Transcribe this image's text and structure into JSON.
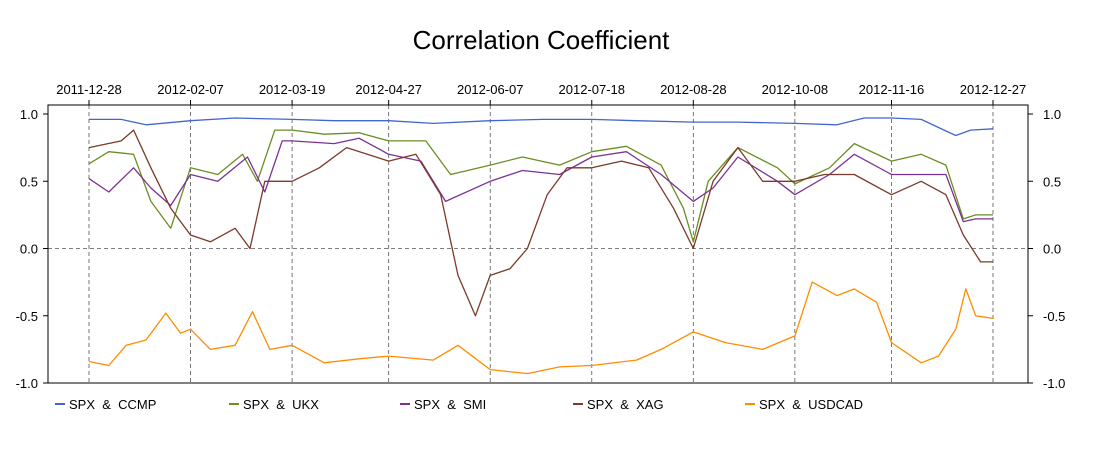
{
  "chart_data": {
    "type": "line",
    "title": "Correlation Coefficient",
    "xlabel": "",
    "ylabel": "",
    "x_range": [
      "2011-12-28",
      "2012-12-27"
    ],
    "ylim": [
      -1.0,
      1.0
    ],
    "x_ticks": [
      "2011-12-28",
      "2012-02-07",
      "2012-03-19",
      "2012-04-27",
      "2012-06-07",
      "2012-07-18",
      "2012-08-28",
      "2012-10-08",
      "2012-11-16",
      "2012-12-27"
    ],
    "y_ticks": [
      {
        "value": 1.0,
        "label": "1.0"
      },
      {
        "value": 0.5,
        "label": "0.5"
      },
      {
        "value": 0.0,
        "label": "0.0"
      },
      {
        "value": -0.5,
        "label": "-0.5"
      },
      {
        "value": -1.0,
        "label": "-1.0"
      }
    ],
    "grid": "dashed vertical lines at date ticks and horizontal line at 0.0",
    "legend_position": "bottom",
    "series": [
      {
        "name": "SPX  &  CCMP",
        "color": "#4466cc",
        "points": [
          [
            "2011-12-28",
            0.96
          ],
          [
            "2012-01-10",
            0.96
          ],
          [
            "2012-01-20",
            0.92
          ],
          [
            "2012-02-07",
            0.95
          ],
          [
            "2012-02-25",
            0.97
          ],
          [
            "2012-03-19",
            0.96
          ],
          [
            "2012-04-05",
            0.95
          ],
          [
            "2012-04-27",
            0.95
          ],
          [
            "2012-05-15",
            0.93
          ],
          [
            "2012-06-07",
            0.95
          ],
          [
            "2012-06-28",
            0.96
          ],
          [
            "2012-07-18",
            0.96
          ],
          [
            "2012-08-05",
            0.95
          ],
          [
            "2012-08-28",
            0.94
          ],
          [
            "2012-09-15",
            0.94
          ],
          [
            "2012-10-08",
            0.93
          ],
          [
            "2012-10-25",
            0.92
          ],
          [
            "2012-11-05",
            0.97
          ],
          [
            "2012-11-16",
            0.97
          ],
          [
            "2012-11-28",
            0.96
          ],
          [
            "2012-12-05",
            0.9
          ],
          [
            "2012-12-12",
            0.84
          ],
          [
            "2012-12-18",
            0.88
          ],
          [
            "2012-12-27",
            0.89
          ]
        ]
      },
      {
        "name": "SPX  &  UKX",
        "color": "#6b8e23",
        "points": [
          [
            "2011-12-28",
            0.63
          ],
          [
            "2012-01-05",
            0.72
          ],
          [
            "2012-01-15",
            0.7
          ],
          [
            "2012-01-22",
            0.35
          ],
          [
            "2012-01-30",
            0.15
          ],
          [
            "2012-02-07",
            0.6
          ],
          [
            "2012-02-18",
            0.55
          ],
          [
            "2012-02-28",
            0.7
          ],
          [
            "2012-03-05",
            0.5
          ],
          [
            "2012-03-12",
            0.88
          ],
          [
            "2012-03-19",
            0.88
          ],
          [
            "2012-04-01",
            0.85
          ],
          [
            "2012-04-15",
            0.86
          ],
          [
            "2012-04-27",
            0.8
          ],
          [
            "2012-05-12",
            0.8
          ],
          [
            "2012-05-22",
            0.55
          ],
          [
            "2012-06-07",
            0.62
          ],
          [
            "2012-06-20",
            0.68
          ],
          [
            "2012-07-05",
            0.62
          ],
          [
            "2012-07-18",
            0.72
          ],
          [
            "2012-08-01",
            0.76
          ],
          [
            "2012-08-15",
            0.62
          ],
          [
            "2012-08-24",
            0.3
          ],
          [
            "2012-08-28",
            0.05
          ],
          [
            "2012-09-03",
            0.5
          ],
          [
            "2012-09-15",
            0.75
          ],
          [
            "2012-10-01",
            0.6
          ],
          [
            "2012-10-08",
            0.48
          ],
          [
            "2012-10-22",
            0.6
          ],
          [
            "2012-11-01",
            0.78
          ],
          [
            "2012-11-16",
            0.65
          ],
          [
            "2012-11-28",
            0.7
          ],
          [
            "2012-12-08",
            0.62
          ],
          [
            "2012-12-15",
            0.22
          ],
          [
            "2012-12-20",
            0.25
          ],
          [
            "2012-12-27",
            0.25
          ]
        ]
      },
      {
        "name": "SPX  &  SMI",
        "color": "#7b3294",
        "points": [
          [
            "2011-12-28",
            0.52
          ],
          [
            "2012-01-05",
            0.42
          ],
          [
            "2012-01-15",
            0.6
          ],
          [
            "2012-01-22",
            0.45
          ],
          [
            "2012-01-30",
            0.32
          ],
          [
            "2012-02-07",
            0.55
          ],
          [
            "2012-02-18",
            0.5
          ],
          [
            "2012-03-01",
            0.68
          ],
          [
            "2012-03-08",
            0.42
          ],
          [
            "2012-03-15",
            0.8
          ],
          [
            "2012-03-19",
            0.8
          ],
          [
            "2012-04-05",
            0.78
          ],
          [
            "2012-04-15",
            0.82
          ],
          [
            "2012-04-27",
            0.7
          ],
          [
            "2012-05-10",
            0.65
          ],
          [
            "2012-05-20",
            0.35
          ],
          [
            "2012-06-07",
            0.5
          ],
          [
            "2012-06-20",
            0.58
          ],
          [
            "2012-07-05",
            0.55
          ],
          [
            "2012-07-18",
            0.68
          ],
          [
            "2012-08-01",
            0.72
          ],
          [
            "2012-08-15",
            0.55
          ],
          [
            "2012-08-28",
            0.35
          ],
          [
            "2012-09-05",
            0.45
          ],
          [
            "2012-09-15",
            0.68
          ],
          [
            "2012-10-01",
            0.5
          ],
          [
            "2012-10-08",
            0.4
          ],
          [
            "2012-10-22",
            0.55
          ],
          [
            "2012-11-01",
            0.7
          ],
          [
            "2012-11-16",
            0.55
          ],
          [
            "2012-11-28",
            0.55
          ],
          [
            "2012-12-08",
            0.55
          ],
          [
            "2012-12-15",
            0.2
          ],
          [
            "2012-12-20",
            0.22
          ],
          [
            "2012-12-27",
            0.22
          ]
        ]
      },
      {
        "name": "SPX  &  XAG",
        "color": "#7b3a2a",
        "points": [
          [
            "2011-12-28",
            0.75
          ],
          [
            "2012-01-10",
            0.8
          ],
          [
            "2012-01-15",
            0.88
          ],
          [
            "2012-01-22",
            0.6
          ],
          [
            "2012-01-30",
            0.3
          ],
          [
            "2012-02-07",
            0.1
          ],
          [
            "2012-02-15",
            0.05
          ],
          [
            "2012-02-25",
            0.15
          ],
          [
            "2012-03-02",
            0.0
          ],
          [
            "2012-03-08",
            0.5
          ],
          [
            "2012-03-19",
            0.5
          ],
          [
            "2012-03-30",
            0.6
          ],
          [
            "2012-04-10",
            0.75
          ],
          [
            "2012-04-27",
            0.65
          ],
          [
            "2012-05-08",
            0.7
          ],
          [
            "2012-05-18",
            0.4
          ],
          [
            "2012-05-25",
            -0.2
          ],
          [
            "2012-06-01",
            -0.5
          ],
          [
            "2012-06-07",
            -0.2
          ],
          [
            "2012-06-15",
            -0.15
          ],
          [
            "2012-06-22",
            0.0
          ],
          [
            "2012-06-30",
            0.4
          ],
          [
            "2012-07-08",
            0.6
          ],
          [
            "2012-07-18",
            0.6
          ],
          [
            "2012-07-30",
            0.65
          ],
          [
            "2012-08-10",
            0.6
          ],
          [
            "2012-08-20",
            0.3
          ],
          [
            "2012-08-28",
            0.0
          ],
          [
            "2012-09-05",
            0.5
          ],
          [
            "2012-09-15",
            0.75
          ],
          [
            "2012-09-25",
            0.5
          ],
          [
            "2012-10-08",
            0.5
          ],
          [
            "2012-10-20",
            0.55
          ],
          [
            "2012-11-01",
            0.55
          ],
          [
            "2012-11-16",
            0.4
          ],
          [
            "2012-11-28",
            0.5
          ],
          [
            "2012-12-08",
            0.4
          ],
          [
            "2012-12-15",
            0.1
          ],
          [
            "2012-12-22",
            -0.1
          ],
          [
            "2012-12-27",
            -0.1
          ]
        ]
      },
      {
        "name": "SPX  &  USDCAD",
        "color": "#ff8c00",
        "points": [
          [
            "2011-12-28",
            -0.84
          ],
          [
            "2012-01-05",
            -0.87
          ],
          [
            "2012-01-12",
            -0.72
          ],
          [
            "2012-01-20",
            -0.68
          ],
          [
            "2012-01-28",
            -0.48
          ],
          [
            "2012-02-03",
            -0.63
          ],
          [
            "2012-02-07",
            -0.6
          ],
          [
            "2012-02-15",
            -0.75
          ],
          [
            "2012-02-25",
            -0.72
          ],
          [
            "2012-03-03",
            -0.47
          ],
          [
            "2012-03-10",
            -0.75
          ],
          [
            "2012-03-19",
            -0.72
          ],
          [
            "2012-04-01",
            -0.85
          ],
          [
            "2012-04-15",
            -0.82
          ],
          [
            "2012-04-27",
            -0.8
          ],
          [
            "2012-05-15",
            -0.83
          ],
          [
            "2012-05-25",
            -0.72
          ],
          [
            "2012-06-07",
            -0.9
          ],
          [
            "2012-06-22",
            -0.93
          ],
          [
            "2012-07-05",
            -0.88
          ],
          [
            "2012-07-18",
            -0.87
          ],
          [
            "2012-08-05",
            -0.83
          ],
          [
            "2012-08-15",
            -0.75
          ],
          [
            "2012-08-28",
            -0.62
          ],
          [
            "2012-09-10",
            -0.7
          ],
          [
            "2012-09-25",
            -0.75
          ],
          [
            "2012-10-08",
            -0.65
          ],
          [
            "2012-10-15",
            -0.25
          ],
          [
            "2012-10-25",
            -0.35
          ],
          [
            "2012-11-01",
            -0.3
          ],
          [
            "2012-11-10",
            -0.4
          ],
          [
            "2012-11-16",
            -0.7
          ],
          [
            "2012-11-28",
            -0.85
          ],
          [
            "2012-12-05",
            -0.8
          ],
          [
            "2012-12-12",
            -0.6
          ],
          [
            "2012-12-16",
            -0.3
          ],
          [
            "2012-12-20",
            -0.5
          ],
          [
            "2012-12-27",
            -0.52
          ]
        ]
      }
    ]
  }
}
